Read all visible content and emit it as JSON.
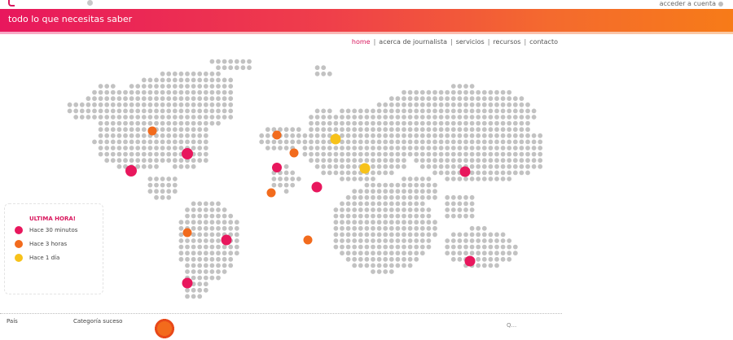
{
  "header": {
    "banner_title": "todo lo que necesitas saber",
    "account_link": "acceder a cuenta"
  },
  "nav": {
    "items": [
      {
        "label": "home",
        "active": true
      },
      {
        "label": "acerca de journalista",
        "active": false
      },
      {
        "label": "servicios",
        "active": false
      },
      {
        "label": "recursos",
        "active": false
      },
      {
        "label": "contacto",
        "active": false
      }
    ]
  },
  "legend": {
    "title": "ULTIMA HORA!",
    "items": [
      {
        "label": "Hace 30 minutos",
        "color": "#e8175d"
      },
      {
        "label": "Hace 3 horas",
        "color": "#f26b1d"
      },
      {
        "label": "Hace 1 día",
        "color": "#f7c21a"
      }
    ]
  },
  "footer": {
    "country_label": "País",
    "category_label": "Categoría suceso",
    "right_text": "Q..."
  },
  "colors": {
    "accent": "#d9185e",
    "map_dot": "#c2c2c2",
    "recent": "#e8175d",
    "hours": "#f26b1d",
    "day": "#f7c21a"
  },
  "map": {
    "markers": [
      {
        "place": "north-america-west",
        "age": "hours"
      },
      {
        "place": "north-america-east",
        "age": "recent"
      },
      {
        "place": "mexico",
        "age": "recent"
      },
      {
        "place": "south-america-north",
        "age": "hours"
      },
      {
        "place": "brazil",
        "age": "recent"
      },
      {
        "place": "argentina",
        "age": "recent"
      },
      {
        "place": "uk",
        "age": "hours"
      },
      {
        "place": "central-europe",
        "age": "hours"
      },
      {
        "place": "russia",
        "age": "day"
      },
      {
        "place": "spain",
        "age": "recent"
      },
      {
        "place": "morocco",
        "age": "hours"
      },
      {
        "place": "middle-east",
        "age": "recent"
      },
      {
        "place": "central-asia",
        "age": "day"
      },
      {
        "place": "japan",
        "age": "recent"
      },
      {
        "place": "southern-africa",
        "age": "hours"
      },
      {
        "place": "australia",
        "age": "recent"
      }
    ]
  }
}
